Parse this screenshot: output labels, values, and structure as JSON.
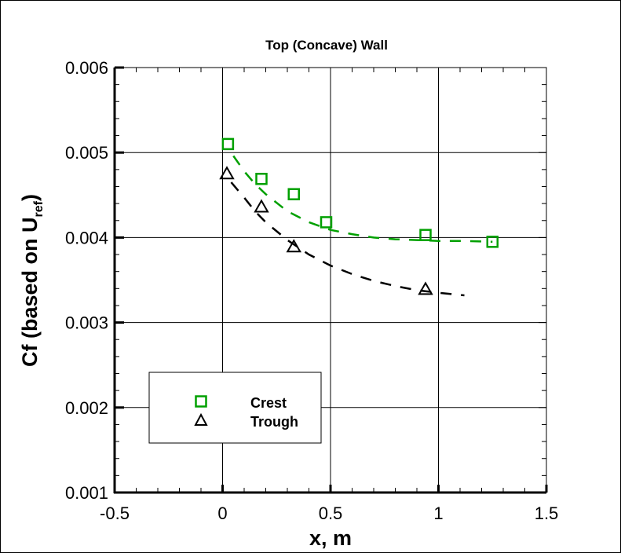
{
  "chart_data": {
    "type": "scatter",
    "title": "Top (Concave) Wall",
    "xlabel": "x, m",
    "ylabel_main": "Cf (based on U",
    "ylabel_sub": "ref",
    "ylabel_close": ")",
    "xlim": [
      -0.5,
      1.5
    ],
    "ylim": [
      0.001,
      0.006
    ],
    "xticks": [
      -0.5,
      0,
      0.5,
      1,
      1.5
    ],
    "xtick_labels": [
      "-0.5",
      "0",
      "0.5",
      "1",
      "1.5"
    ],
    "yticks": [
      0.001,
      0.002,
      0.003,
      0.004,
      0.005,
      0.006
    ],
    "ytick_labels": [
      "0.001",
      "0.002",
      "0.003",
      "0.004",
      "0.005",
      "0.006"
    ],
    "grid": true,
    "legend_position": "lower-left",
    "series": [
      {
        "name": "Crest",
        "marker": "square",
        "color": "#00a000",
        "x": [
          0.025,
          0.18,
          0.33,
          0.48,
          0.94,
          1.25
        ],
        "y": [
          0.0051,
          0.00469,
          0.00451,
          0.00418,
          0.00403,
          0.00395
        ],
        "fit_x": [
          0.05,
          0.1,
          0.15,
          0.2,
          0.3,
          0.4,
          0.5,
          0.6,
          0.7,
          0.8,
          0.9,
          1.0,
          1.1,
          1.25
        ],
        "fit_y": [
          0.00496,
          0.00478,
          0.00463,
          0.00451,
          0.00431,
          0.00418,
          0.00409,
          0.00404,
          0.004,
          0.00398,
          0.00397,
          0.00396,
          0.00396,
          0.00395
        ]
      },
      {
        "name": "Trough",
        "marker": "triangle",
        "color": "#000000",
        "x": [
          0.02,
          0.18,
          0.33,
          0.94
        ],
        "y": [
          0.00475,
          0.00436,
          0.00389,
          0.00339
        ],
        "fit_x": [
          0.04,
          0.1,
          0.15,
          0.2,
          0.3,
          0.4,
          0.5,
          0.6,
          0.7,
          0.8,
          0.9,
          1.0,
          1.12
        ],
        "fit_y": [
          0.00465,
          0.00447,
          0.00431,
          0.00418,
          0.00397,
          0.0038,
          0.00367,
          0.00357,
          0.00349,
          0.00343,
          0.00338,
          0.00335,
          0.00332
        ]
      }
    ]
  }
}
